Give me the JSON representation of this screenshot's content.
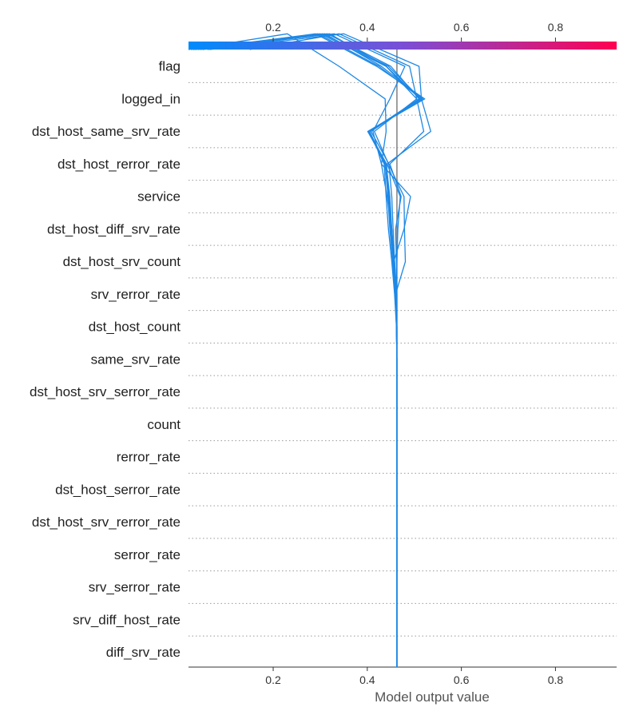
{
  "chart_data": {
    "type": "line",
    "title": "",
    "xlabel": "Model output value",
    "ylabel": "",
    "xlim": [
      0.02,
      0.93
    ],
    "x_ticks": [
      "0.2",
      "0.4",
      "0.6",
      "0.8"
    ],
    "x_tick_values": [
      0.2,
      0.4,
      0.6,
      0.8
    ],
    "base_value": 0.463,
    "line_color": "#1e88e5",
    "base_line_color": "#808080",
    "colorbar": {
      "low_color": "#008bfb",
      "mid_color": "#7a4fd6",
      "high_color": "#ff0051",
      "range": [
        0.02,
        0.93
      ],
      "ticks": [
        "0.2",
        "0.4",
        "0.6",
        "0.8"
      ]
    },
    "features": [
      "flag",
      "logged_in",
      "dst_host_same_srv_rate",
      "dst_host_rerror_rate",
      "service",
      "dst_host_diff_srv_rate",
      "dst_host_srv_count",
      "srv_rerror_rate",
      "dst_host_count",
      "same_srv_rate",
      "dst_host_srv_serror_rate",
      "count",
      "rerror_rate",
      "dst_host_serror_rate",
      "dst_host_srv_rerror_rate",
      "serror_rate",
      "srv_serror_rate",
      "srv_diff_host_rate",
      "diff_srv_rate"
    ],
    "series": [
      {
        "values": [
          0.463,
          0.463,
          0.463,
          0.463,
          0.463,
          0.463,
          0.463,
          0.463,
          0.463,
          0.463,
          0.463,
          0.463,
          0.463,
          0.458,
          0.455,
          0.452,
          0.446,
          0.408,
          0.512,
          0.44,
          0.3,
          0.03
        ]
      },
      {
        "values": [
          0.463,
          0.463,
          0.463,
          0.463,
          0.463,
          0.463,
          0.463,
          0.463,
          0.463,
          0.463,
          0.463,
          0.462,
          0.46,
          0.456,
          0.452,
          0.448,
          0.44,
          0.401,
          0.518,
          0.43,
          0.31,
          0.035
        ]
      },
      {
        "values": [
          0.463,
          0.463,
          0.463,
          0.463,
          0.463,
          0.463,
          0.463,
          0.463,
          0.463,
          0.463,
          0.463,
          0.463,
          0.459,
          0.454,
          0.448,
          0.444,
          0.438,
          0.402,
          0.522,
          0.42,
          0.29,
          0.03
        ]
      },
      {
        "values": [
          0.463,
          0.463,
          0.463,
          0.463,
          0.463,
          0.463,
          0.463,
          0.463,
          0.463,
          0.463,
          0.463,
          0.462,
          0.458,
          0.452,
          0.445,
          0.44,
          0.436,
          0.404,
          0.516,
          0.425,
          0.295,
          0.04
        ]
      },
      {
        "values": [
          0.463,
          0.463,
          0.463,
          0.463,
          0.463,
          0.463,
          0.463,
          0.463,
          0.463,
          0.463,
          0.463,
          0.463,
          0.461,
          0.458,
          0.452,
          0.445,
          0.438,
          0.405,
          0.51,
          0.45,
          0.315,
          0.05
        ]
      },
      {
        "values": [
          0.463,
          0.463,
          0.463,
          0.463,
          0.463,
          0.463,
          0.463,
          0.463,
          0.463,
          0.463,
          0.463,
          0.462,
          0.46,
          0.481,
          0.479,
          0.478,
          0.445,
          0.415,
          0.505,
          0.44,
          0.32,
          0.06
        ]
      },
      {
        "values": [
          0.463,
          0.463,
          0.463,
          0.463,
          0.463,
          0.463,
          0.463,
          0.463,
          0.463,
          0.463,
          0.463,
          0.462,
          0.462,
          0.463,
          0.465,
          0.47,
          0.442,
          0.535,
          0.515,
          0.51,
          0.35,
          0.065
        ]
      },
      {
        "values": [
          0.463,
          0.463,
          0.463,
          0.463,
          0.463,
          0.463,
          0.463,
          0.463,
          0.463,
          0.463,
          0.463,
          0.463,
          0.463,
          0.462,
          0.46,
          0.472,
          0.448,
          0.52,
          0.505,
          0.49,
          0.34,
          0.15
        ]
      },
      {
        "values": [
          0.463,
          0.463,
          0.463,
          0.463,
          0.463,
          0.463,
          0.463,
          0.463,
          0.463,
          0.463,
          0.463,
          0.463,
          0.461,
          0.456,
          0.478,
          0.492,
          0.43,
          0.412,
          0.448,
          0.48,
          0.33,
          0.025
        ]
      },
      {
        "values": [
          0.463,
          0.463,
          0.463,
          0.463,
          0.463,
          0.463,
          0.463,
          0.463,
          0.463,
          0.463,
          0.463,
          0.463,
          0.462,
          0.455,
          0.451,
          0.442,
          0.43,
          0.44,
          0.438,
          0.34,
          0.23,
          0.02
        ]
      },
      {
        "values": [
          0.463,
          0.463,
          0.463,
          0.463,
          0.463,
          0.463,
          0.463,
          0.463,
          0.463,
          0.463,
          0.463,
          0.462,
          0.46,
          0.455,
          0.45,
          0.446,
          0.441,
          0.403,
          0.514,
          0.445,
          0.305,
          0.045
        ]
      }
    ]
  }
}
